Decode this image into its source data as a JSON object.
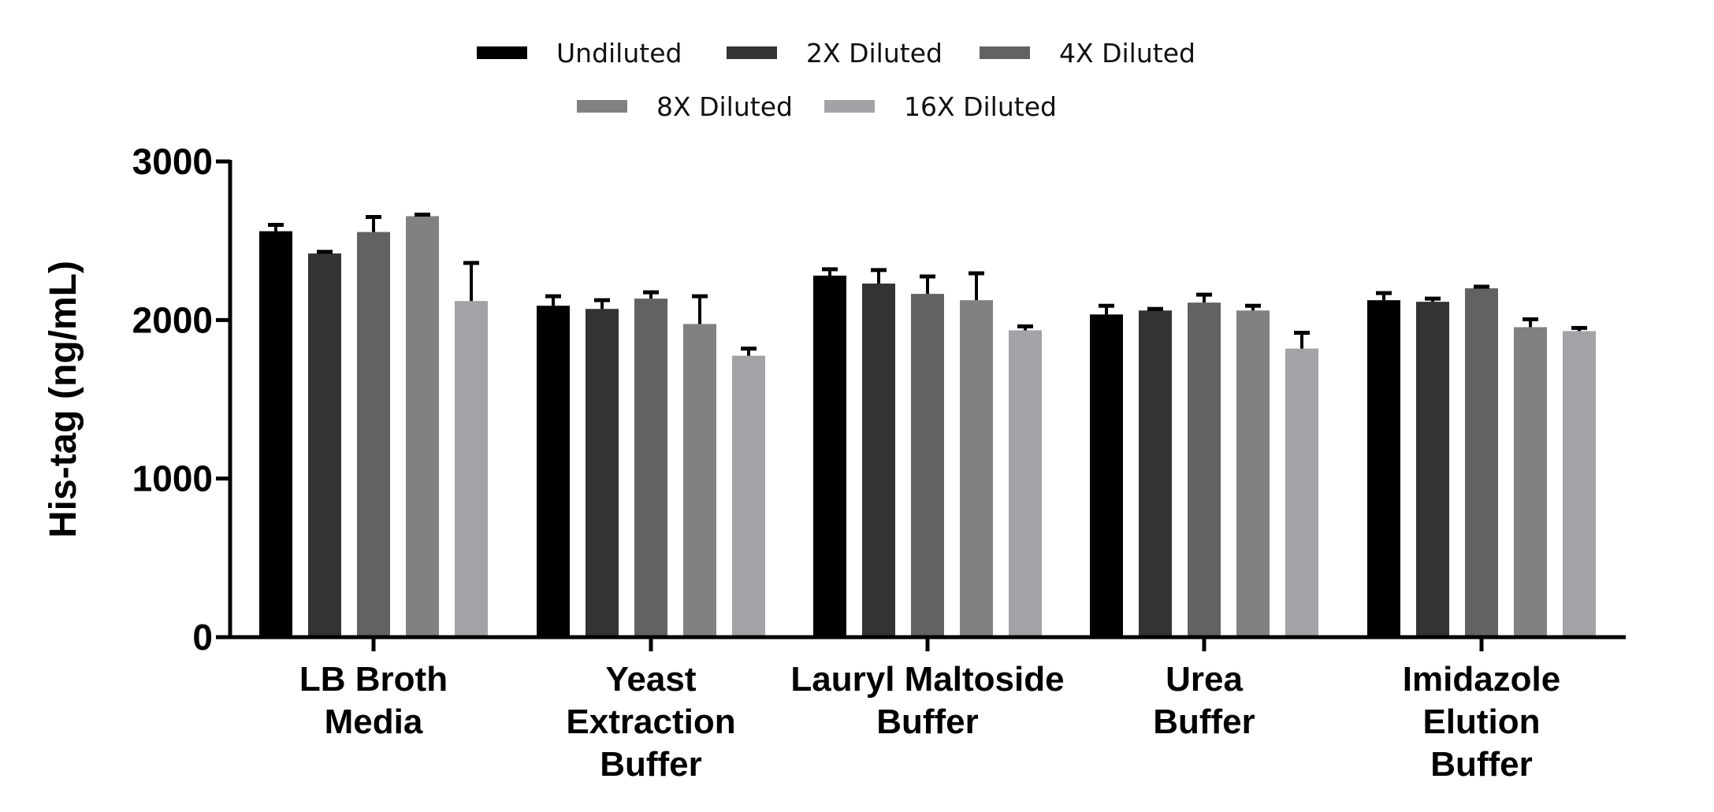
{
  "chart_data": {
    "type": "bar",
    "ylabel": "His-tag (ng/mL)",
    "xlabel": "",
    "ylim": [
      0,
      3000
    ],
    "yticks": [
      0,
      1000,
      2000,
      3000
    ],
    "grid": false,
    "legend_position": "top-center",
    "categories": [
      [
        "LB Broth",
        "Media"
      ],
      [
        "Yeast",
        "Extraction",
        "Buffer"
      ],
      [
        "Lauryl Maltoside",
        "Buffer"
      ],
      [
        "Urea",
        "Buffer"
      ],
      [
        "Imidazole",
        "Elution",
        "Buffer"
      ]
    ],
    "series": [
      {
        "name": "Undiluted",
        "color": "#000000",
        "values": [
          2560,
          2090,
          2280,
          2035,
          2125
        ],
        "errors": [
          40,
          60,
          40,
          55,
          45
        ]
      },
      {
        "name": "2X Diluted",
        "color": "#333333",
        "values": [
          2420,
          2070,
          2230,
          2060,
          2115
        ],
        "errors": [
          10,
          55,
          85,
          10,
          20
        ]
      },
      {
        "name": "4X Diluted",
        "color": "#626262",
        "values": [
          2555,
          2135,
          2165,
          2110,
          2200
        ],
        "errors": [
          95,
          40,
          110,
          50,
          10
        ]
      },
      {
        "name": "8X Diluted",
        "color": "#818181",
        "values": [
          2655,
          1975,
          2125,
          2060,
          1955
        ],
        "errors": [
          10,
          175,
          170,
          30,
          50
        ]
      },
      {
        "name": "16X Diluted",
        "color": "#a3a3a7",
        "values": [
          2120,
          1775,
          1935,
          1820,
          1930
        ],
        "errors": [
          240,
          45,
          25,
          100,
          20
        ]
      }
    ]
  }
}
